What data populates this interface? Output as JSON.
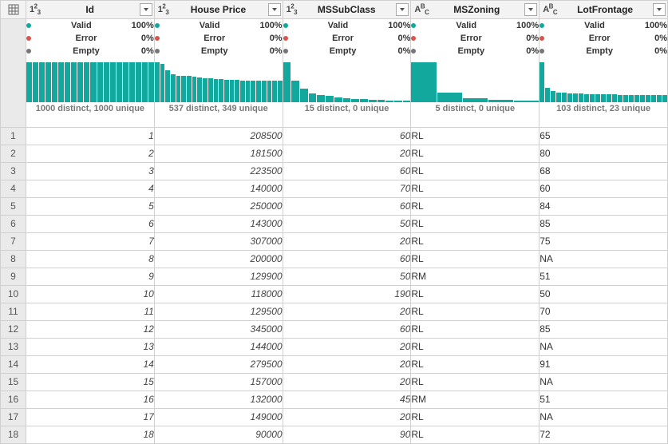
{
  "accent_color": "#12a89d",
  "columns": [
    {
      "key": "Id",
      "name": "Id",
      "type": "number",
      "align": "right",
      "italic": true,
      "profile": {
        "valid_pct": "100%",
        "error_pct": "0%",
        "empty_pct": "0%",
        "distinct_text": "1000 distinct, 1000 unique",
        "bars": [
          50,
          50,
          50,
          50,
          50,
          50,
          50,
          50,
          50,
          50,
          50,
          50,
          50,
          50,
          50,
          50,
          50,
          50,
          50,
          50
        ]
      }
    },
    {
      "key": "HousePrice",
      "name": "House Price",
      "type": "number",
      "align": "right",
      "italic": true,
      "profile": {
        "valid_pct": "100%",
        "error_pct": "0%",
        "empty_pct": "0%",
        "distinct_text": "537 distinct, 349 unique",
        "bars": [
          50,
          48,
          40,
          35,
          33,
          33,
          33,
          32,
          31,
          30,
          30,
          29,
          29,
          28,
          28,
          28,
          27,
          27,
          27,
          27,
          27,
          27,
          27,
          27
        ]
      }
    },
    {
      "key": "MSSubClass",
      "name": "MSSubClass",
      "type": "number",
      "align": "right",
      "italic": true,
      "profile": {
        "valid_pct": "100%",
        "error_pct": "0%",
        "empty_pct": "0%",
        "distinct_text": "15 distinct, 0 unique",
        "bars": [
          50,
          27,
          17,
          11,
          9,
          8,
          6,
          5,
          4,
          4,
          3,
          3,
          2,
          2,
          2
        ]
      }
    },
    {
      "key": "MSZoning",
      "name": "MSZoning",
      "type": "text",
      "align": "left",
      "italic": false,
      "profile": {
        "valid_pct": "100%",
        "error_pct": "0%",
        "empty_pct": "0%",
        "distinct_text": "5 distinct, 0 unique",
        "bars": [
          50,
          12,
          5,
          3,
          2
        ]
      }
    },
    {
      "key": "LotFrontage",
      "name": "LotFrontage",
      "type": "text",
      "align": "left",
      "italic": false,
      "profile": {
        "valid_pct": "100%",
        "error_pct": "0%",
        "empty_pct": "0%",
        "distinct_text": "103 distinct, 23 unique",
        "bars": [
          50,
          18,
          14,
          12,
          12,
          11,
          11,
          11,
          10,
          10,
          10,
          10,
          10,
          10,
          9,
          9,
          9,
          9,
          9,
          9,
          9,
          9,
          9
        ]
      }
    }
  ],
  "rows": [
    {
      "n": "1",
      "Id": "1",
      "HousePrice": "208500",
      "MSSubClass": "60",
      "MSZoning": "RL",
      "LotFrontage": "65"
    },
    {
      "n": "2",
      "Id": "2",
      "HousePrice": "181500",
      "MSSubClass": "20",
      "MSZoning": "RL",
      "LotFrontage": "80"
    },
    {
      "n": "3",
      "Id": "3",
      "HousePrice": "223500",
      "MSSubClass": "60",
      "MSZoning": "RL",
      "LotFrontage": "68"
    },
    {
      "n": "4",
      "Id": "4",
      "HousePrice": "140000",
      "MSSubClass": "70",
      "MSZoning": "RL",
      "LotFrontage": "60"
    },
    {
      "n": "5",
      "Id": "5",
      "HousePrice": "250000",
      "MSSubClass": "60",
      "MSZoning": "RL",
      "LotFrontage": "84"
    },
    {
      "n": "6",
      "Id": "6",
      "HousePrice": "143000",
      "MSSubClass": "50",
      "MSZoning": "RL",
      "LotFrontage": "85"
    },
    {
      "n": "7",
      "Id": "7",
      "HousePrice": "307000",
      "MSSubClass": "20",
      "MSZoning": "RL",
      "LotFrontage": "75"
    },
    {
      "n": "8",
      "Id": "8",
      "HousePrice": "200000",
      "MSSubClass": "60",
      "MSZoning": "RL",
      "LotFrontage": "NA"
    },
    {
      "n": "9",
      "Id": "9",
      "HousePrice": "129900",
      "MSSubClass": "50",
      "MSZoning": "RM",
      "LotFrontage": "51"
    },
    {
      "n": "10",
      "Id": "10",
      "HousePrice": "118000",
      "MSSubClass": "190",
      "MSZoning": "RL",
      "LotFrontage": "50"
    },
    {
      "n": "11",
      "Id": "11",
      "HousePrice": "129500",
      "MSSubClass": "20",
      "MSZoning": "RL",
      "LotFrontage": "70"
    },
    {
      "n": "12",
      "Id": "12",
      "HousePrice": "345000",
      "MSSubClass": "60",
      "MSZoning": "RL",
      "LotFrontage": "85"
    },
    {
      "n": "13",
      "Id": "13",
      "HousePrice": "144000",
      "MSSubClass": "20",
      "MSZoning": "RL",
      "LotFrontage": "NA"
    },
    {
      "n": "14",
      "Id": "14",
      "HousePrice": "279500",
      "MSSubClass": "20",
      "MSZoning": "RL",
      "LotFrontage": "91"
    },
    {
      "n": "15",
      "Id": "15",
      "HousePrice": "157000",
      "MSSubClass": "20",
      "MSZoning": "RL",
      "LotFrontage": "NA"
    },
    {
      "n": "16",
      "Id": "16",
      "HousePrice": "132000",
      "MSSubClass": "45",
      "MSZoning": "RM",
      "LotFrontage": "51"
    },
    {
      "n": "17",
      "Id": "17",
      "HousePrice": "149000",
      "MSSubClass": "20",
      "MSZoning": "RL",
      "LotFrontage": "NA"
    },
    {
      "n": "18",
      "Id": "18",
      "HousePrice": "90000",
      "MSSubClass": "90",
      "MSZoning": "RL",
      "LotFrontage": "72"
    }
  ]
}
